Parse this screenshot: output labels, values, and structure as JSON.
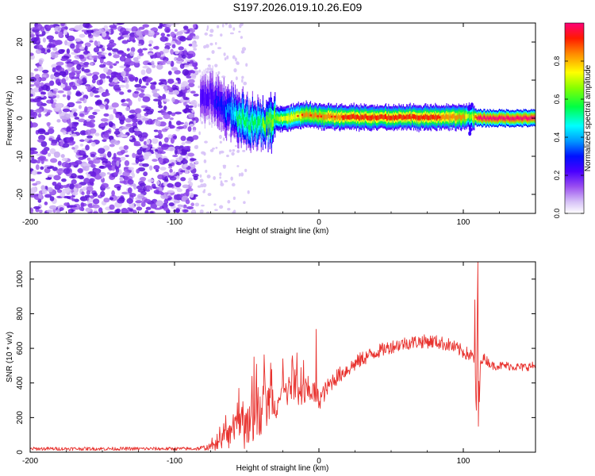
{
  "title": "S197.2026.019.10.26.E09",
  "colors": {
    "snr_line": "#e8322e",
    "scatter_purple": "#6b1fe0",
    "scatter_light": "#c6a6f2",
    "frame": "#000000"
  },
  "chart_data": [
    {
      "type": "heatmap",
      "name": "spectrogram",
      "title": "",
      "xlabel": "Height of straight line (km)",
      "ylabel": "Frequency (Hz)",
      "xlim": [
        -200,
        150
      ],
      "ylim": [
        -25,
        25
      ],
      "xticks": [
        -200,
        -100,
        0,
        100
      ],
      "xtick_labels": [
        "-200",
        "-100",
        "0",
        "100"
      ],
      "yticks": [
        -20,
        -10,
        0,
        10,
        20
      ],
      "ytick_labels": [
        "-20",
        "-10",
        "0",
        "10",
        "20"
      ],
      "colorbar": {
        "label": "Normalized spectral amplitude",
        "range": [
          0.0,
          1.0
        ],
        "ticks": [
          0.0,
          0.2,
          0.4,
          0.6,
          0.8
        ],
        "tick_labels": [
          "0.0",
          "0.2",
          "0.4",
          "0.6",
          "0.8"
        ],
        "colormap": [
          "#ffffff",
          "#c7a3f5",
          "#8a2be2",
          "#3b00ff",
          "#0000ff",
          "#00bfff",
          "#00ffff",
          "#00ff00",
          "#ffff00",
          "#ff8000",
          "#ff0000",
          "#ff007f"
        ]
      },
      "noise_region": {
        "x_range": [
          -200,
          -85
        ],
        "freq_range": [
          -25,
          25
        ],
        "amplitude": "0.1-0.3"
      },
      "ridge": {
        "x": [
          -80,
          -75,
          -70,
          -65,
          -60,
          -55,
          -50,
          -45,
          -40,
          -35,
          -30,
          -20,
          -10,
          0,
          20,
          40,
          60,
          80,
          100,
          105,
          110,
          150
        ],
        "frequency": [
          5,
          6,
          4,
          2.5,
          1.5,
          0,
          -1,
          -2,
          -1.5,
          -1,
          0,
          0,
          1,
          0.5,
          0.3,
          0.2,
          0.2,
          0.2,
          0.3,
          0.5,
          0,
          0
        ],
        "amplitude": [
          0.2,
          0.2,
          0.25,
          0.3,
          0.4,
          0.5,
          0.55,
          0.5,
          0.55,
          0.6,
          0.65,
          0.7,
          0.75,
          0.8,
          0.85,
          0.85,
          0.85,
          0.85,
          0.8,
          0.6,
          0.95,
          0.95
        ]
      }
    },
    {
      "type": "line",
      "name": "snr",
      "title": "",
      "xlabel": "Height of straight line (km)",
      "ylabel": "SNR (10 * v/v)",
      "xlim": [
        -200,
        150
      ],
      "ylim": [
        0,
        1100
      ],
      "xticks": [
        -200,
        -100,
        0,
        100
      ],
      "xtick_labels": [
        "-200",
        "-100",
        "0",
        "100"
      ],
      "yticks": [
        0,
        200,
        400,
        600,
        800,
        1000
      ],
      "ytick_labels": [
        "0",
        "200",
        "400",
        "600",
        "800",
        "1000"
      ],
      "series": [
        {
          "name": "SNR",
          "x": [
            -200,
            -180,
            -160,
            -140,
            -120,
            -100,
            -85,
            -75,
            -70,
            -65,
            -60,
            -55,
            -50,
            -45,
            -40,
            -35,
            -30,
            -25,
            -20,
            -15,
            -10,
            -5,
            0,
            10,
            20,
            30,
            40,
            50,
            60,
            70,
            80,
            90,
            100,
            105,
            108,
            109,
            110,
            111,
            112,
            115,
            120,
            130,
            140,
            150
          ],
          "y": [
            20,
            20,
            20,
            20,
            20,
            20,
            20,
            30,
            50,
            80,
            100,
            130,
            180,
            220,
            250,
            280,
            300,
            320,
            350,
            320,
            340,
            360,
            300,
            420,
            480,
            540,
            580,
            610,
            630,
            640,
            640,
            620,
            580,
            560,
            540,
            200,
            1050,
            250,
            540,
            540,
            500,
            500,
            490,
            500
          ],
          "noise_amplitude": [
            10,
            10,
            10,
            10,
            10,
            10,
            10,
            20,
            40,
            60,
            80,
            120,
            160,
            180,
            150,
            140,
            120,
            100,
            90,
            120,
            100,
            80,
            60,
            50,
            45,
            45,
            40,
            40,
            40,
            40,
            40,
            40,
            40,
            40,
            40,
            0,
            0,
            0,
            30,
            30,
            25,
            25,
            25,
            25
          ],
          "spikes": [
            [
              -45,
              550
            ],
            [
              -2,
              710
            ],
            [
              108,
              880
            ],
            [
              110,
              1100
            ],
            [
              110.5,
              150
            ]
          ]
        }
      ]
    }
  ]
}
